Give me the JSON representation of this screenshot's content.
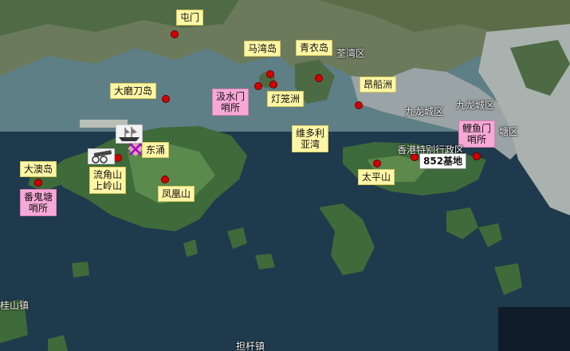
{
  "map": {
    "labels": {
      "tuen_mun": "屯门",
      "ma_wan": "马湾岛",
      "tsing_yi": "青衣岛",
      "tsuen_wan": "荃湾区",
      "tai_mo_to": "大磨刀岛",
      "kap_shui_mun": "汲水门\n哨所",
      "lantau_islet": "灯笼洲",
      "stonecutters": "昂船洲",
      "kowloon_city": "九龙城区",
      "kowloon_city2": "九龙城区",
      "lei_yue_mun": "鲤鱼门\n哨所",
      "victoria": "维多利\n亚湾",
      "tung_chung": "东涌",
      "tai_o": "大澳岛",
      "lau_kok": "流角山\n上岭山",
      "fung_wong": "凤凰山",
      "fan_kwai": "番鬼塘\n哨所",
      "hk_sar": "香港特别行政区",
      "taiping": "太平山",
      "base_852": "852基地",
      "shan_zhen": "桂山镇",
      "bottom_town": "担杆镇",
      "east_partial": "塘区"
    },
    "icons": [
      "ship-icon",
      "cannon-icon",
      "crossed-swords-icon",
      "location-dot-icon"
    ],
    "colors": {
      "marker": "#d40000",
      "label_yellow": "#fff6a6",
      "label_pink": "#f7a8d6"
    }
  }
}
